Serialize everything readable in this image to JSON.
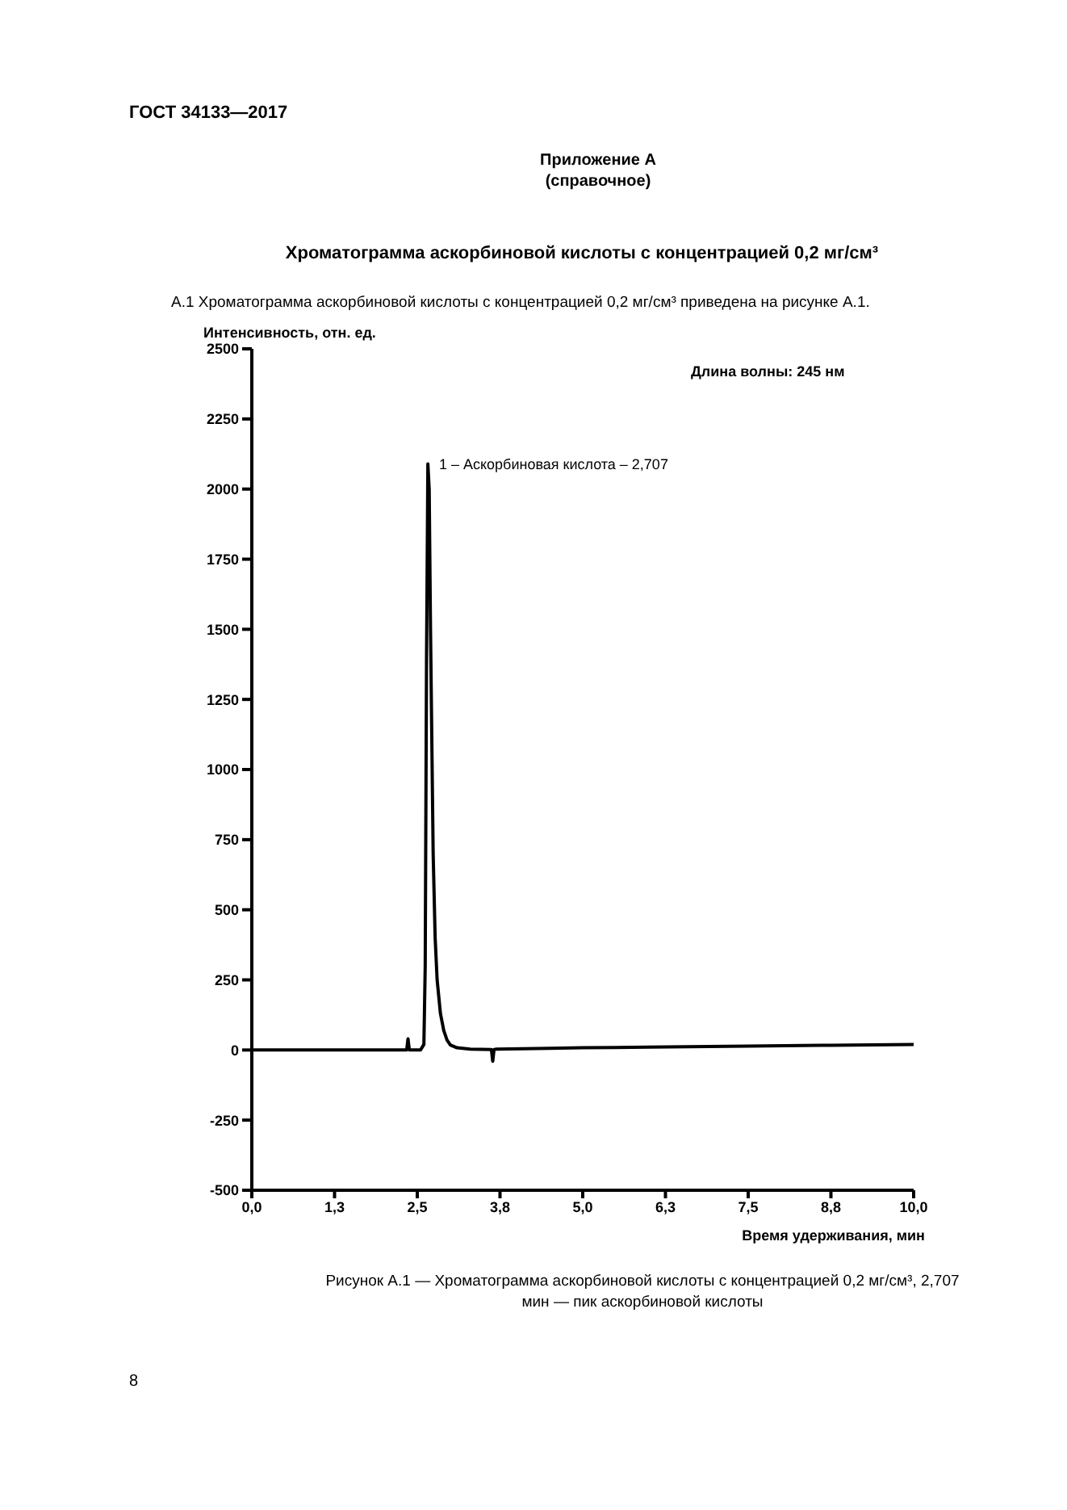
{
  "chart_data": {
    "type": "line",
    "title": "Хроматограмма аскорбиновой кислоты с концентрацией 0,2 мг/см³",
    "subtitle": "А.1  Хроматограмма аскорбиновой кислоты с концентрацией 0,2 мг/см³ приведена на рисунке А.1.",
    "xlabel": "Время удерживания, мин",
    "ylabel": "Интенсивность, отн. ед.",
    "annotations": [
      "ГОСТ 34133—2017",
      "Приложение А",
      "(справочное)",
      "Длина волны: 245 нм",
      "Рисунок А.1 — Хроматограмма аскорбиновой кислоты с концентрацией 0,2 мг/см³, 2,707 мин — пик аскорбиновой кислоты",
      "8",
      {
        "text": "1 – Аскорбиновая кислота – 2,707",
        "x": 2.707,
        "y": 2090
      }
    ],
    "series": [
      {
        "color": "#000000",
        "x": [
          0,
          1.0,
          2.3,
          2.34,
          2.36,
          2.38,
          2.55,
          2.6,
          2.62,
          2.64,
          2.66,
          2.68,
          2.7,
          2.72,
          2.74,
          2.77,
          2.8,
          2.85,
          2.9,
          2.95,
          3.0,
          3.1,
          3.3,
          3.62,
          3.64,
          3.66,
          3.7,
          4.5,
          5.0,
          6.0,
          7.5,
          8.75,
          10.0
        ],
        "values": [
          0,
          0,
          0,
          0,
          40,
          0,
          0,
          20,
          300,
          1400,
          2090,
          2000,
          1500,
          1100,
          700,
          400,
          250,
          130,
          70,
          35,
          18,
          8,
          3,
          2,
          -40,
          2,
          3,
          6,
          8,
          10,
          14,
          17,
          20
        ]
      }
    ],
    "xlim": [
      0,
      10
    ],
    "xticks": [
      {
        "value": 0,
        "label": "0,0"
      },
      {
        "value": 1.25,
        "label": "1,3"
      },
      {
        "value": 2.5,
        "label": "2,5"
      },
      {
        "value": 3.75,
        "label": "3,8"
      },
      {
        "value": 5,
        "label": "5,0"
      },
      {
        "value": 6.25,
        "label": "6,3"
      },
      {
        "value": 7.5,
        "label": "7,5"
      },
      {
        "value": 8.75,
        "label": "8,8"
      },
      {
        "value": 10,
        "label": "10,0"
      }
    ],
    "ylim": [
      -500,
      2500
    ],
    "yticks": [
      -500,
      -250,
      0,
      250,
      500,
      750,
      1000,
      1250,
      1500,
      1750,
      2000,
      2250,
      2500
    ],
    "grid": false,
    "legend": false,
    "marker": "none",
    "line_style": "solid"
  }
}
